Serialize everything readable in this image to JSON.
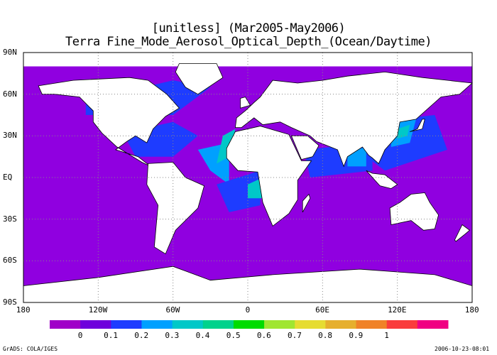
{
  "title_line1": "[unitless] (Mar2005-May2006)",
  "title_line2": "Terra Fine_Mode_Aerosol_Optical_Depth_(Ocean/Daytime)",
  "lat_labels": [
    "90N",
    "60N",
    "30N",
    "EQ",
    "30S",
    "60S",
    "90S"
  ],
  "lon_labels": [
    "180",
    "120W",
    "60W",
    "0",
    "60E",
    "120E",
    "180"
  ],
  "colorbar": {
    "colors": [
      "#a000c8",
      "#6e00dc",
      "#1e3cff",
      "#00a0ff",
      "#00c8c8",
      "#00d28c",
      "#00dc00",
      "#a0e632",
      "#e6dc32",
      "#e6af2d",
      "#f08228",
      "#fa3c3c",
      "#f00082"
    ],
    "labels": [
      "0",
      "0.1",
      "0.2",
      "0.3",
      "0.4",
      "0.5",
      "0.6",
      "0.7",
      "0.8",
      "0.9",
      "1"
    ]
  },
  "colors": {
    "ocean_low": "#9000e0",
    "ocean_mid": "#1e3cff",
    "ocean_high": "#00a0ff",
    "coastal": "#00c8c8",
    "land": "#ffffff",
    "grid": "#888888"
  },
  "footer_left": "GrADS: COLA/IGES",
  "footer_right": "2006-10-23-08:01"
}
